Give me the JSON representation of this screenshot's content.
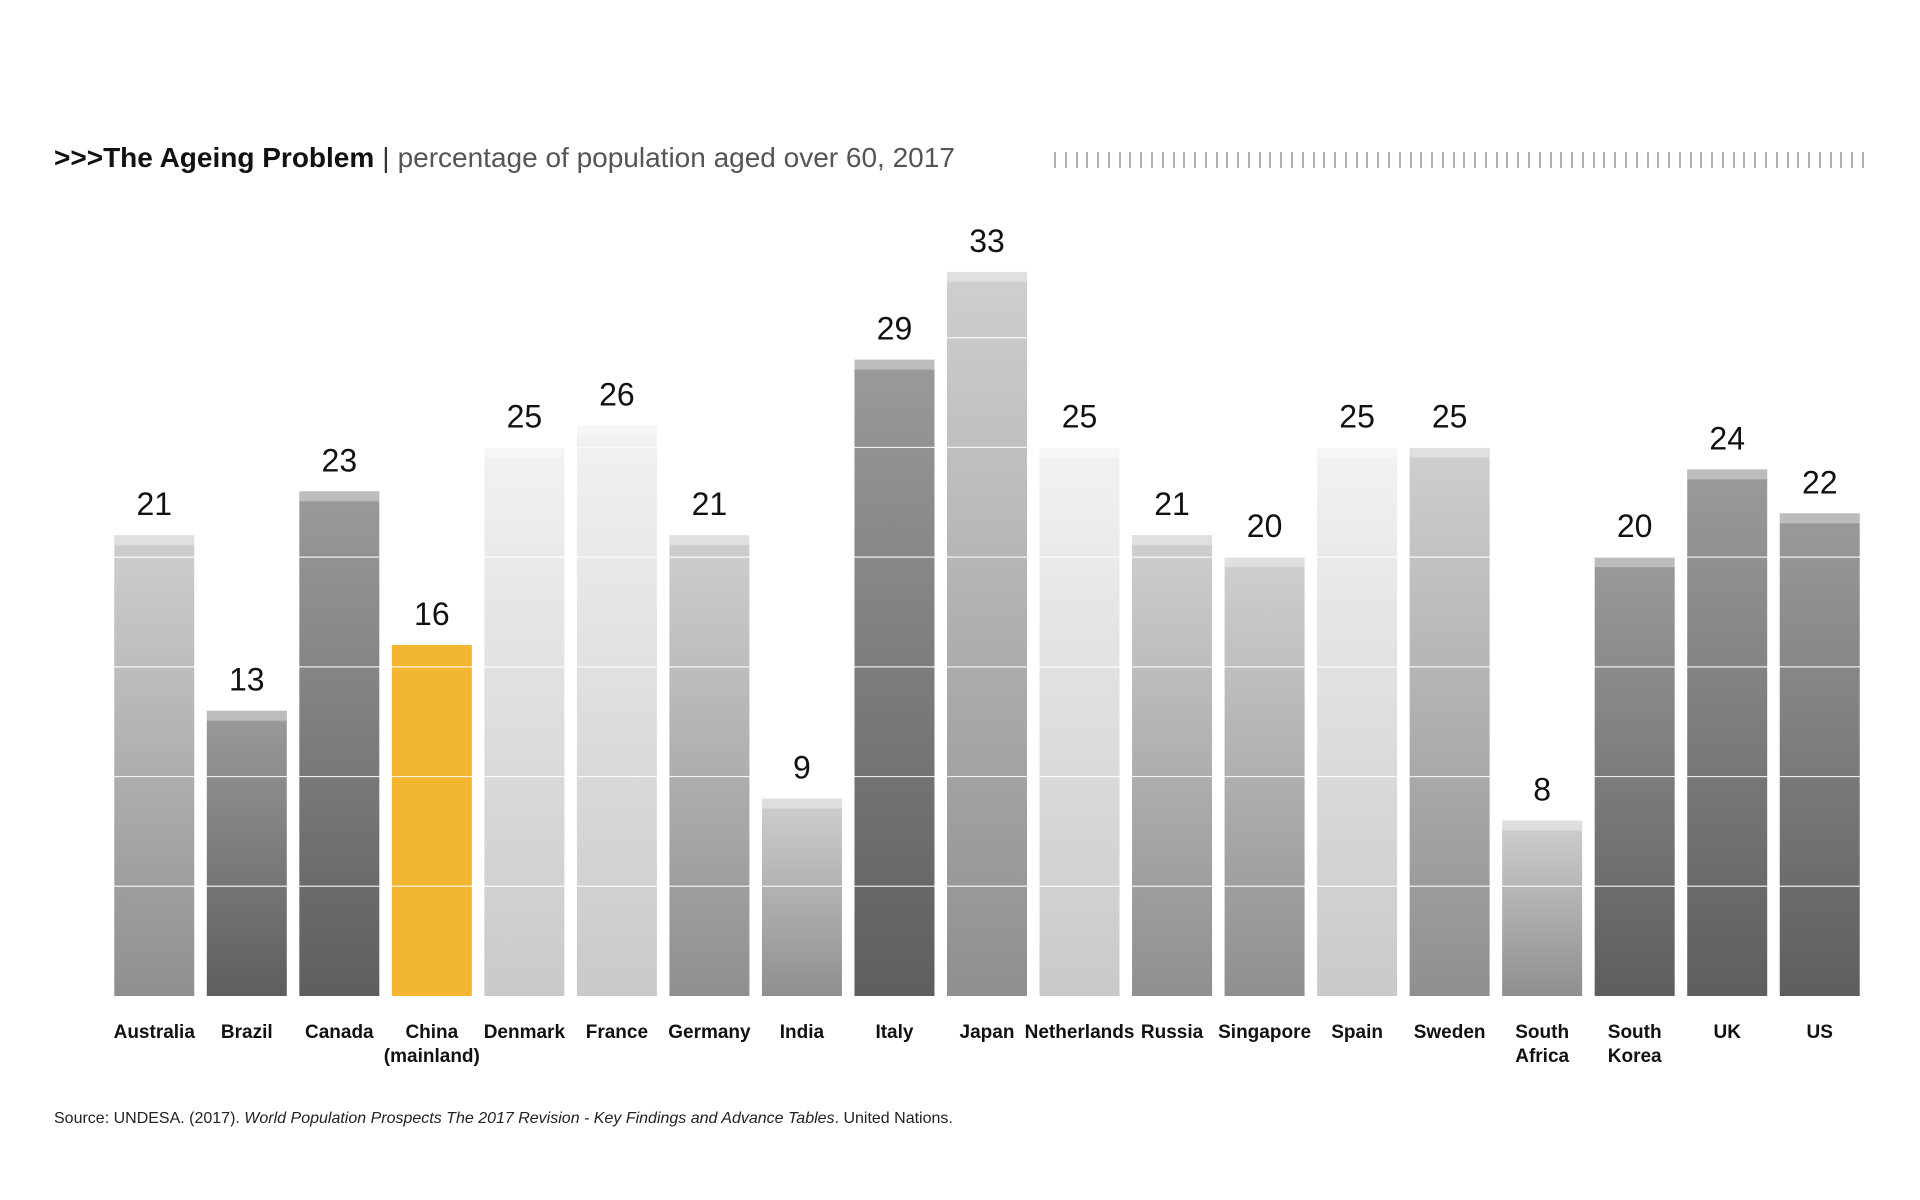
{
  "header": {
    "prefix": ">>>",
    "title": "The Ageing Problem",
    "separator": "|",
    "subtitle": "percentage of population aged over 60, 2017"
  },
  "colors": {
    "highlight": "#F2B630",
    "bar_light": "#dcdcdc",
    "bar_dark": "#7a7a7a",
    "gridline": "#ffffff",
    "text": "#111111"
  },
  "chart_data": {
    "type": "bar",
    "title": "The Ageing Problem",
    "subtitle": "percentage of population aged over 60, 2017",
    "xlabel": "",
    "ylabel": "",
    "ylim": [
      0,
      35
    ],
    "grid": true,
    "legend": "none",
    "highlight_category": "China (mainland)",
    "categories": [
      "Australia",
      "Brazil",
      "Canada",
      "China (mainland)",
      "Denmark",
      "France",
      "Germany",
      "India",
      "Italy",
      "Japan",
      "Netherlands",
      "Russia",
      "Singapore",
      "Spain",
      "Sweden",
      "South Africa",
      "South Korea",
      "UK",
      "US"
    ],
    "category_lines": [
      [
        "Australia"
      ],
      [
        "Brazil"
      ],
      [
        "Canada"
      ],
      [
        "China",
        "(mainland)"
      ],
      [
        "Denmark"
      ],
      [
        "France"
      ],
      [
        "Germany"
      ],
      [
        "India"
      ],
      [
        "Italy"
      ],
      [
        "Japan"
      ],
      [
        "Netherlands"
      ],
      [
        "Russia"
      ],
      [
        "Singapore"
      ],
      [
        "Spain"
      ],
      [
        "Sweden"
      ],
      [
        "South",
        "Africa"
      ],
      [
        "South",
        "Korea"
      ],
      [
        "UK"
      ],
      [
        "US"
      ]
    ],
    "values": [
      21,
      13,
      23,
      16,
      25,
      26,
      21,
      9,
      29,
      33,
      25,
      21,
      20,
      25,
      25,
      8,
      20,
      24,
      22
    ],
    "bar_tones": [
      "mid",
      "dark",
      "dark",
      "highlight",
      "light",
      "light",
      "mid",
      "mid",
      "dark",
      "mid",
      "light",
      "mid",
      "mid",
      "light",
      "mid",
      "mid",
      "dark",
      "dark",
      "dark"
    ]
  },
  "source": {
    "prefix": "Source: UNDESA. (2017). ",
    "italic": "World Population Prospects The 2017 Revision - Key Findings and Advance Tables",
    "suffix": ". United Nations."
  }
}
